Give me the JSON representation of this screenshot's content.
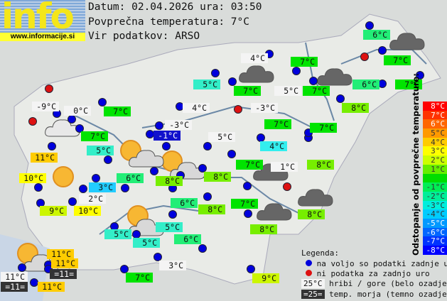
{
  "logo": {
    "word": "info",
    "url": "www.informacije.si"
  },
  "header": {
    "date_line": "Datum: 02.04.2026 ura: 03:50",
    "avg_line": "Povprečna temperatura: 7°C",
    "source_line": "Vir podatkov: ARSO"
  },
  "colors": {
    "available": "#0000dd",
    "missing": "#dd1111",
    "mountain": "#f4f4f4",
    "sea": "#333333"
  },
  "stations": [
    {
      "t": "6°C",
      "bg": "#22ee77"
    },
    {
      "t": "4°C",
      "bg": "#f4f4f4"
    },
    {
      "t": "7°C",
      "bg": "#00e400"
    },
    {
      "t": "7°C",
      "bg": "#00e400"
    },
    {
      "t": "5°C",
      "bg": "#33eec8"
    },
    {
      "t": "7°C",
      "bg": "#00e400"
    },
    {
      "t": "5°C",
      "bg": "#f4f4f4"
    },
    {
      "t": "7°C",
      "bg": "#00e400"
    },
    {
      "t": "6°C",
      "bg": "#22ee77"
    },
    {
      "t": "7°C",
      "bg": "#00e400"
    },
    {
      "t": "-9°C",
      "bg": "#f4f4f4"
    },
    {
      "t": "0°C",
      "bg": "#f4f4f4"
    },
    {
      "t": "7°C",
      "bg": "#00e400"
    },
    {
      "t": "4°C",
      "bg": "#f4f4f4"
    },
    {
      "t": "-3°C",
      "bg": "#f4f4f4"
    },
    {
      "t": "8°C",
      "bg": "#77ee00"
    },
    {
      "t": "-3°C",
      "bg": "#f4f4f4"
    },
    {
      "t": "-1°C",
      "bg": "#1111cc"
    },
    {
      "t": "7°C",
      "bg": "#00e400"
    },
    {
      "t": "7°C",
      "bg": "#00e400"
    },
    {
      "t": "7°C",
      "bg": "#00e400"
    },
    {
      "t": "5°C",
      "bg": "#f4f4f4"
    },
    {
      "t": "5°C",
      "bg": "#33eec8"
    },
    {
      "t": "4°C",
      "bg": "#33eeee"
    },
    {
      "t": "11°C",
      "bg": "#ffcc00"
    },
    {
      "t": "7°C",
      "bg": "#00e400"
    },
    {
      "t": "1°C",
      "bg": "#f4f4f4"
    },
    {
      "t": "8°C",
      "bg": "#77ee00"
    },
    {
      "t": "10°C",
      "bg": "#ffff00"
    },
    {
      "t": "6°C",
      "bg": "#22ee77"
    },
    {
      "t": "8°C",
      "bg": "#77ee00"
    },
    {
      "t": "8°C",
      "bg": "#77ee00"
    },
    {
      "t": "3°C",
      "bg": "#22ccff"
    },
    {
      "t": "2°C",
      "bg": "#f4f4f4"
    },
    {
      "t": "6°C",
      "bg": "#22ee77"
    },
    {
      "t": "8°C",
      "bg": "#77ee00"
    },
    {
      "t": "7°C",
      "bg": "#00e400"
    },
    {
      "t": "9°C",
      "bg": "#ccf600"
    },
    {
      "t": "10°C",
      "bg": "#ffff00"
    },
    {
      "t": "8°C",
      "bg": "#77ee00"
    },
    {
      "t": "5°C",
      "bg": "#33eec8"
    },
    {
      "t": "5°C",
      "bg": "#33eec8"
    },
    {
      "t": "8°C",
      "bg": "#77ee00"
    },
    {
      "t": "5°C",
      "bg": "#33eec8"
    },
    {
      "t": "6°C",
      "bg": "#22ee77"
    },
    {
      "t": "11°C",
      "bg": "#ffcc00"
    },
    {
      "t": "11°C",
      "bg": "#ffcc00"
    },
    {
      "t": "=11=",
      "bg": "#333333"
    },
    {
      "t": "11°C",
      "bg": "#f4f4f4"
    },
    {
      "t": "=11=",
      "bg": "#333333"
    },
    {
      "t": "11°C",
      "bg": "#ffcc00"
    },
    {
      "t": "3°C",
      "bg": "#f4f4f4"
    },
    {
      "t": "7°C",
      "bg": "#00e400"
    },
    {
      "t": "9°C",
      "bg": "#ccf600"
    }
  ],
  "scale": {
    "title": "Odstopanje od povprečne temperature:",
    "bands": [
      {
        "l": "8°C",
        "c": "#ff0000"
      },
      {
        "l": "7°C",
        "c": "#ff3300"
      },
      {
        "l": "6°C",
        "c": "#ff6600"
      },
      {
        "l": "5°C",
        "c": "#ff9900"
      },
      {
        "l": "4°C",
        "c": "#ffcc00"
      },
      {
        "l": "3°C",
        "c": "#ffff00"
      },
      {
        "l": "2°C",
        "c": "#ccff00"
      },
      {
        "l": "1°C",
        "c": "#66ee00"
      },
      {
        "l": "",
        "c": "#00dd00"
      },
      {
        "l": "-1°C",
        "c": "#00ee55"
      },
      {
        "l": "-2°C",
        "c": "#00ee99"
      },
      {
        "l": "-3°C",
        "c": "#00eedd"
      },
      {
        "l": "-4°C",
        "c": "#00ccff"
      },
      {
        "l": "-5°C",
        "c": "#0099ff"
      },
      {
        "l": "-6°C",
        "c": "#0066ff"
      },
      {
        "l": "-7°C",
        "c": "#0033ff"
      },
      {
        "l": "-8°C",
        "c": "#0000ff"
      }
    ]
  },
  "legend": {
    "title": "Legenda:",
    "available": "na voljo so podatki zadnje ure",
    "missing": "ni podatka za zadnjo uro",
    "mountain_sample": "25°C",
    "mountain": "hribi / gore (belo ozadje)",
    "sea_sample": "=25=",
    "sea": "temp. morja (temno ozadje)"
  }
}
